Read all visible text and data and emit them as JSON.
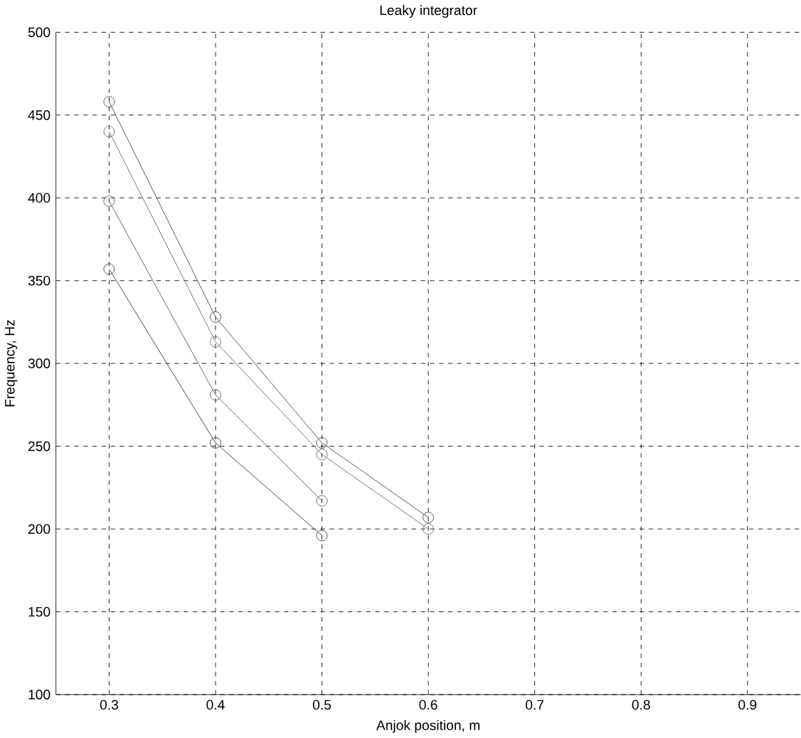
{
  "chart_data": {
    "type": "line",
    "title": "Leaky integrator",
    "xlabel": "Anjok position, m",
    "ylabel": "Frequency, Hz",
    "x": [
      0.3,
      0.4,
      0.5,
      0.6
    ],
    "series": [
      {
        "color": "#404040",
        "values": [
          458,
          328,
          252,
          207
        ]
      },
      {
        "color": "#606060",
        "values": [
          440,
          313,
          245,
          200
        ]
      },
      {
        "color": "#505050",
        "values": [
          398,
          281,
          217,
          null
        ]
      },
      {
        "color": "#303030",
        "values": [
          357,
          252,
          196,
          null
        ]
      }
    ],
    "xlim": [
      0.25,
      0.95
    ],
    "ylim": [
      100,
      500
    ],
    "xticks": [
      0.3,
      0.4,
      0.5,
      0.6,
      0.7,
      0.8,
      0.9
    ],
    "yticks": [
      100,
      150,
      200,
      250,
      300,
      350,
      400,
      450,
      500
    ],
    "grid": true,
    "marker": "circle",
    "line_style": "solid"
  }
}
